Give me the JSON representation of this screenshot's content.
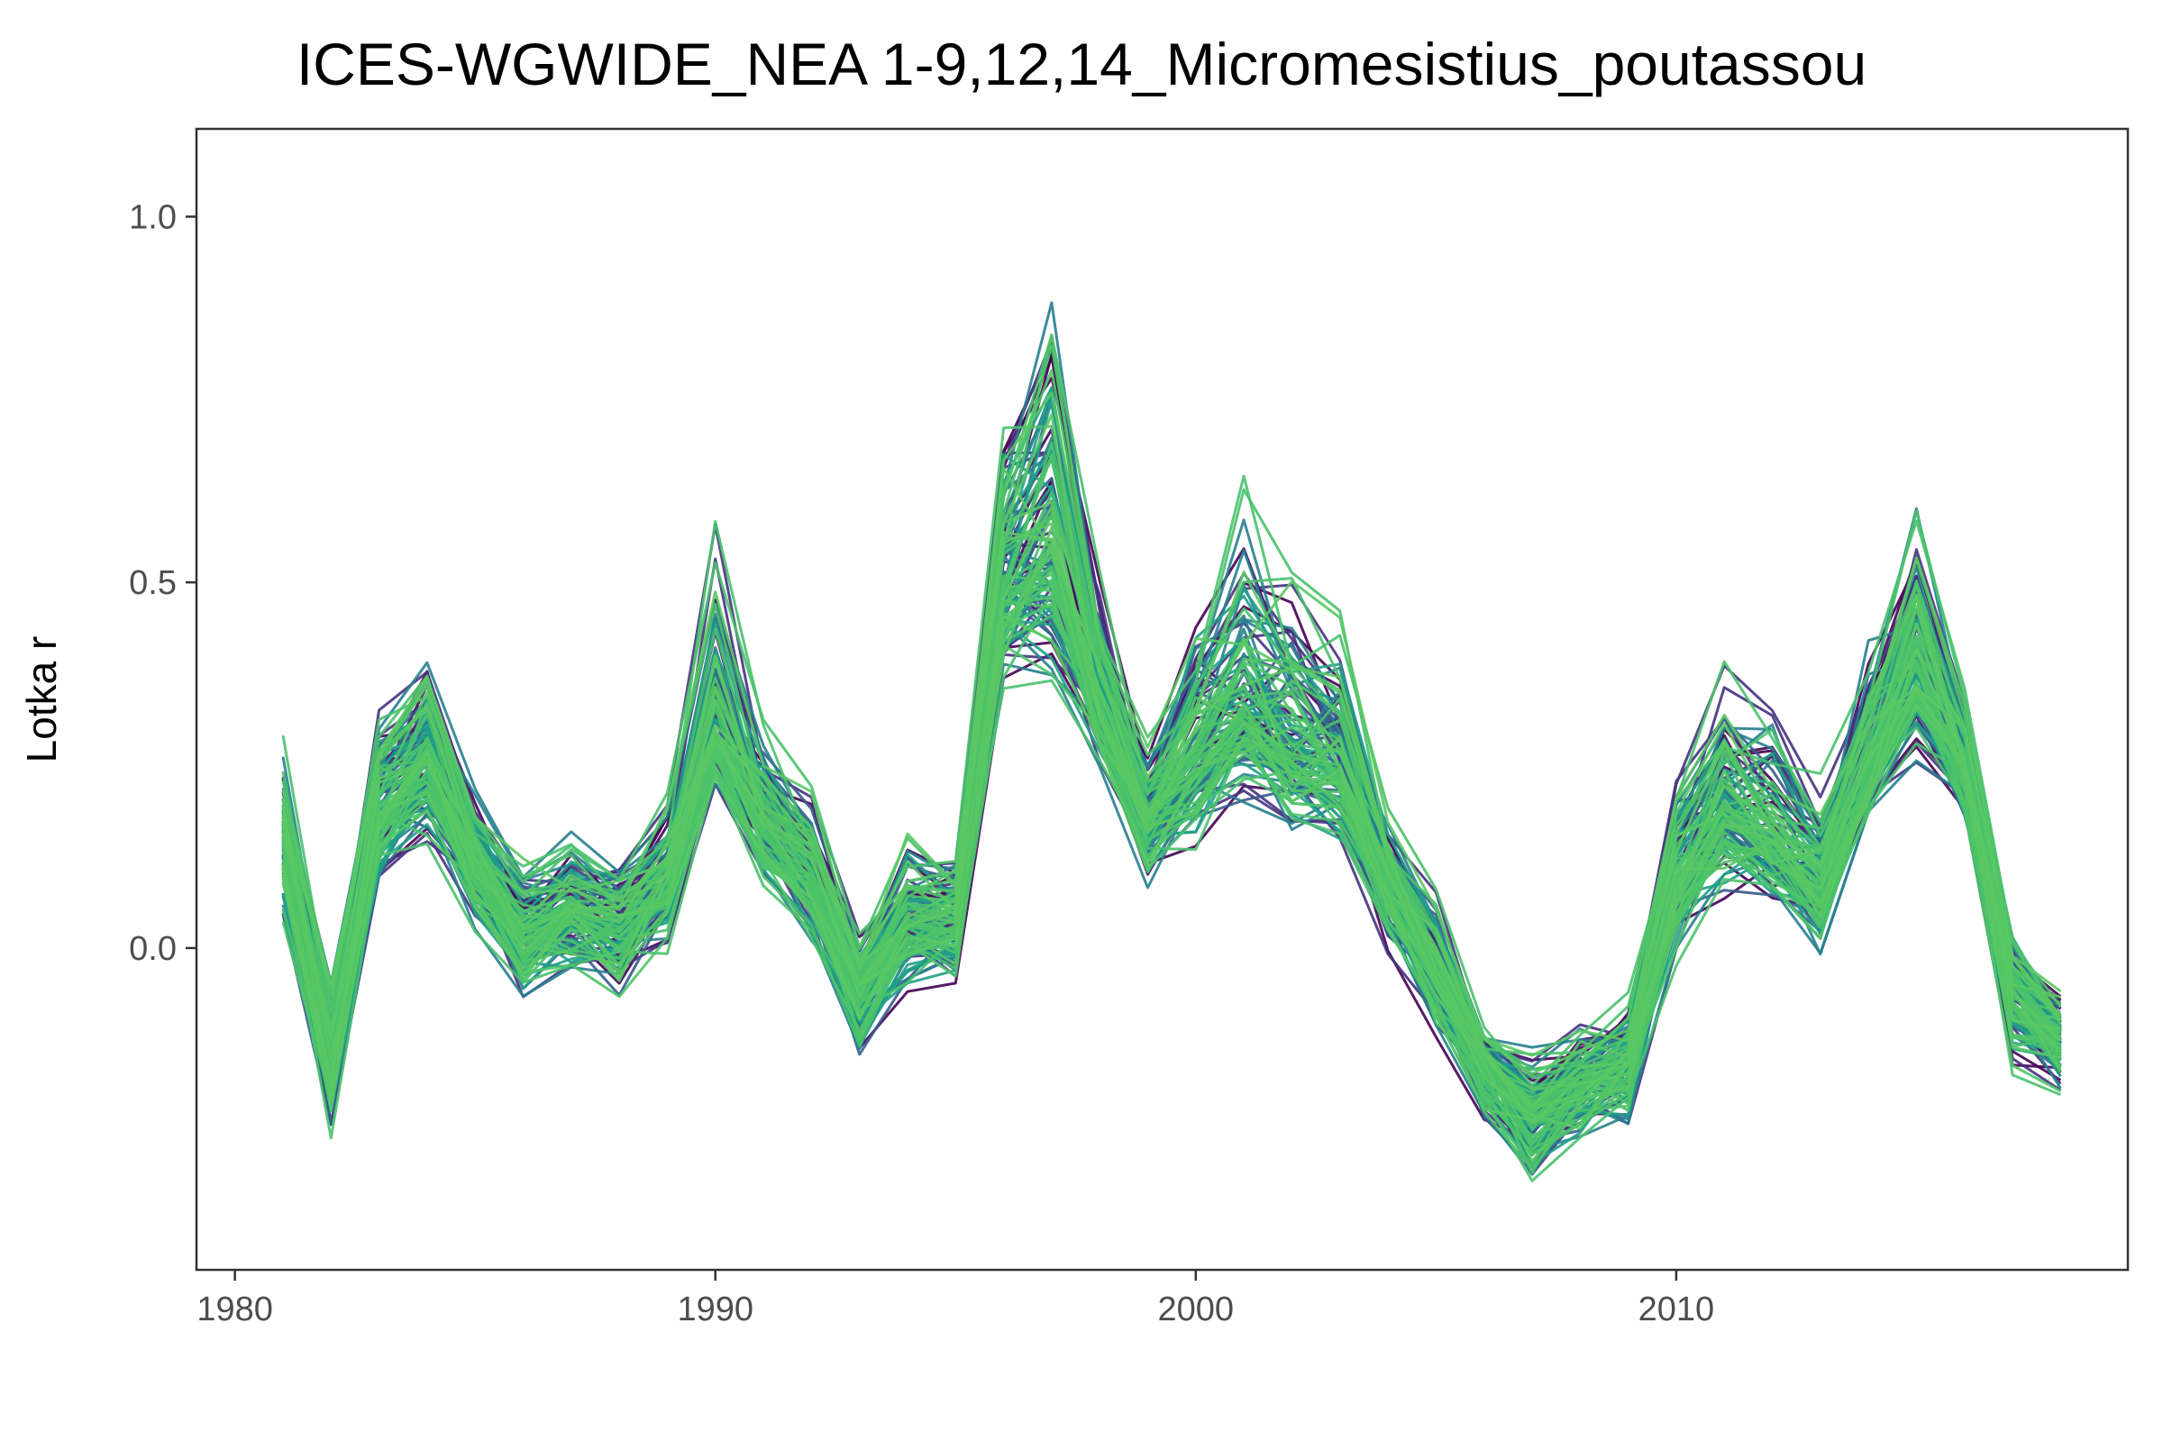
{
  "chart_data": {
    "type": "line",
    "title": "ICES-WGWIDE_NEA 1-9,12,14_Micromesistius_poutassou",
    "xlabel": "",
    "ylabel": "Lotka r",
    "xlim": [
      1979.2,
      2019.4
    ],
    "ylim": [
      -0.44,
      1.12
    ],
    "x_ticks": [
      1980,
      1990,
      2000,
      2010
    ],
    "x_tick_labels": [
      "1980",
      "1990",
      "2000",
      "2010"
    ],
    "y_ticks": [
      0.0,
      0.5,
      1.0
    ],
    "y_tick_labels": [
      "0.0",
      "0.5",
      "1.0"
    ],
    "grid": false,
    "legend": "none",
    "x": [
      1981,
      1982,
      1983,
      1984,
      1985,
      1986,
      1987,
      1988,
      1989,
      1990,
      1991,
      1992,
      1993,
      1994,
      1995,
      1996,
      1997,
      1998,
      1999,
      2000,
      2001,
      2002,
      2003,
      2004,
      2005,
      2006,
      2007,
      2008,
      2009,
      2010,
      2011,
      2012,
      2013,
      2014,
      2015,
      2016,
      2017,
      2018
    ],
    "series_summary": {
      "median": [
        0.15,
        -0.15,
        0.2,
        0.26,
        0.12,
        0.03,
        0.05,
        0.03,
        0.1,
        0.3,
        0.18,
        0.1,
        -0.05,
        0.04,
        0.05,
        0.5,
        0.55,
        0.35,
        0.18,
        0.27,
        0.33,
        0.28,
        0.25,
        0.1,
        -0.02,
        -0.15,
        -0.22,
        -0.18,
        -0.15,
        0.1,
        0.2,
        0.15,
        0.1,
        0.25,
        0.4,
        0.25,
        -0.05,
        -0.12
      ],
      "low": [
        0.0,
        -0.28,
        0.05,
        0.1,
        0.0,
        -0.1,
        -0.08,
        -0.1,
        -0.03,
        0.18,
        0.05,
        -0.02,
        -0.18,
        -0.1,
        -0.08,
        0.3,
        0.3,
        0.22,
        0.05,
        0.1,
        0.15,
        0.12,
        0.1,
        -0.05,
        -0.15,
        -0.28,
        -0.36,
        -0.3,
        -0.28,
        -0.05,
        0.02,
        0.03,
        -0.05,
        0.15,
        0.2,
        0.15,
        -0.2,
        -0.22
      ],
      "high": [
        0.3,
        0.0,
        0.35,
        0.45,
        0.25,
        0.15,
        0.18,
        0.15,
        0.22,
        0.65,
        0.35,
        0.25,
        0.05,
        0.18,
        0.15,
        0.78,
        1.02,
        0.58,
        0.3,
        0.5,
        0.7,
        0.6,
        0.5,
        0.2,
        0.1,
        -0.1,
        -0.12,
        -0.08,
        -0.05,
        0.3,
        0.43,
        0.4,
        0.25,
        0.5,
        0.65,
        0.38,
        0.05,
        -0.03
      ]
    },
    "n_series": 120,
    "palette": [
      "#440154",
      "#46327e",
      "#365c8d",
      "#277f8e",
      "#1fa187",
      "#4ac16d",
      "#4ec468",
      "#5ac864"
    ]
  }
}
